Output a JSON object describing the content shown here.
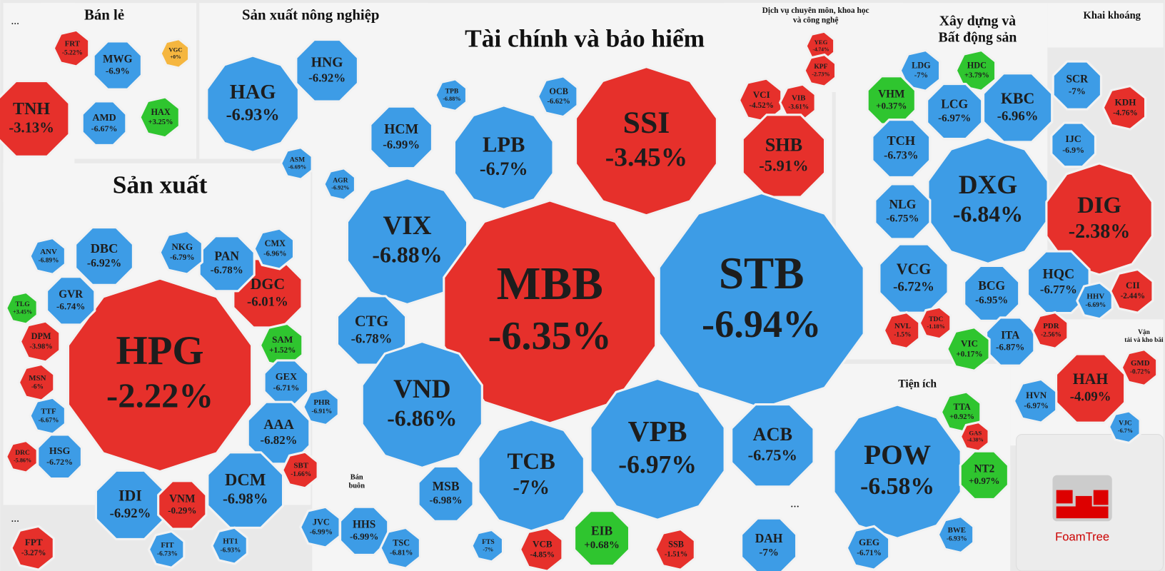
{
  "groups": [
    {
      "title": [
        "…"
      ],
      "cells": [
        {
          "ticker": "TNH",
          "change": "-3.13%"
        }
      ]
    },
    {
      "title": [
        "Bán lẻ"
      ],
      "cells": [
        {
          "ticker": "FRT",
          "change": "-5.22%"
        },
        {
          "ticker": "MWG",
          "change": "-6.9%"
        },
        {
          "ticker": "VGC",
          "change": "+0%"
        },
        {
          "ticker": "AMD",
          "change": "-6.67%"
        },
        {
          "ticker": "HAX",
          "change": "+3.25%"
        }
      ]
    },
    {
      "title": [
        "Sản xuất nông nghiệp"
      ],
      "cells": [
        {
          "ticker": "HAG",
          "change": "-6.93%"
        },
        {
          "ticker": "HNG",
          "change": "-6.92%"
        },
        {
          "ticker": "ASM",
          "change": "-6.69%"
        }
      ]
    },
    {
      "title": [
        "Tài chính và bảo hiểm"
      ],
      "cells": [
        {
          "ticker": "HCM",
          "change": "-6.99%"
        },
        {
          "ticker": "LPB",
          "change": "-6.7%"
        },
        {
          "ticker": "SSI",
          "change": "-3.45%"
        },
        {
          "ticker": "VCI",
          "change": "-4.52%"
        },
        {
          "ticker": "VIB",
          "change": "-3.61%"
        },
        {
          "ticker": "SHB",
          "change": "-5.91%"
        },
        {
          "ticker": "TPB",
          "change": "-6.88%"
        },
        {
          "ticker": "OCB",
          "change": "-6.62%"
        },
        {
          "ticker": "AGR",
          "change": "-6.92%"
        },
        {
          "ticker": "VIX",
          "change": "-6.88%"
        },
        {
          "ticker": "MBB",
          "change": "-6.35%"
        },
        {
          "ticker": "STB",
          "change": "-6.94%"
        },
        {
          "ticker": "CTG",
          "change": "-6.78%"
        },
        {
          "ticker": "VND",
          "change": "-6.86%"
        },
        {
          "ticker": "TCB",
          "change": "-7%"
        },
        {
          "ticker": "VPB",
          "change": "-6.97%"
        },
        {
          "ticker": "ACB",
          "change": "-6.75%"
        },
        {
          "ticker": "MSB",
          "change": "-6.98%"
        },
        {
          "ticker": "EIB",
          "change": "+0.68%"
        },
        {
          "ticker": "VCB",
          "change": "-4.85%"
        },
        {
          "ticker": "SSB",
          "change": "-1.51%"
        },
        {
          "ticker": "FTS",
          "change": "-7%"
        }
      ]
    },
    {
      "title": [
        "Sản xuất"
      ],
      "cells": [
        {
          "ticker": "DBC",
          "change": "-6.92%"
        },
        {
          "ticker": "HPG",
          "change": "-2.22%"
        },
        {
          "ticker": "GVR",
          "change": "-6.74%"
        },
        {
          "ticker": "DGC",
          "change": "-6.01%"
        },
        {
          "ticker": "SAM",
          "change": "+1.52%"
        },
        {
          "ticker": "GEX",
          "change": "-6.71%"
        },
        {
          "ticker": "AAA",
          "change": "-6.82%"
        },
        {
          "ticker": "DCM",
          "change": "-6.98%"
        },
        {
          "ticker": "IDI",
          "change": "-6.92%"
        },
        {
          "ticker": "VNM",
          "change": "-0.29%"
        },
        {
          "ticker": "PAN",
          "change": "-6.78%"
        },
        {
          "ticker": "NKG",
          "change": "-6.79%"
        },
        {
          "ticker": "CMX",
          "change": "-6.96%"
        },
        {
          "ticker": "DPM",
          "change": "-3.98%"
        },
        {
          "ticker": "MSN",
          "change": "-6%"
        },
        {
          "ticker": "TTF",
          "change": "-6.67%"
        },
        {
          "ticker": "HSG",
          "change": "-6.72%"
        },
        {
          "ticker": "DRC",
          "change": "-5.86%"
        },
        {
          "ticker": "SBT",
          "change": "-1.66%"
        },
        {
          "ticker": "PHR",
          "change": "-6.91%"
        },
        {
          "ticker": "ANV",
          "change": "-6.89%"
        },
        {
          "ticker": "TLG",
          "change": "+3.45%"
        },
        {
          "ticker": "HT1",
          "change": "-6.93%"
        },
        {
          "ticker": "FIT",
          "change": "-6.73%"
        }
      ]
    },
    {
      "title": [
        "…"
      ],
      "cells": [
        {
          "ticker": "FPT",
          "change": "-3.27%"
        }
      ]
    },
    {
      "title": [
        "Bán",
        "buôn"
      ],
      "cells": [
        {
          "ticker": "JVC",
          "change": "-6.99%"
        },
        {
          "ticker": "HHS",
          "change": "-6.99%"
        },
        {
          "ticker": "TSC",
          "change": "-6.81%"
        }
      ]
    },
    {
      "title": [
        "Dịch vụ chuyên môn, khoa học",
        "và công nghệ"
      ],
      "cells": [
        {
          "ticker": "YEG",
          "change": "-4.74%"
        },
        {
          "ticker": "KPF",
          "change": "-2.73%"
        }
      ]
    },
    {
      "title": [
        "Xây dựng và",
        "Bất động sản"
      ],
      "cells": [
        {
          "ticker": "LDG",
          "change": "-7%"
        },
        {
          "ticker": "HDC",
          "change": "+3.79%"
        },
        {
          "ticker": "VHM",
          "change": "+0.37%"
        },
        {
          "ticker": "LCG",
          "change": "-6.97%"
        },
        {
          "ticker": "KBC",
          "change": "-6.96%"
        },
        {
          "ticker": "SCR",
          "change": "-7%"
        },
        {
          "ticker": "KDH",
          "change": "-4.76%"
        },
        {
          "ticker": "TCH",
          "change": "-6.73%"
        },
        {
          "ticker": "IJC",
          "change": "-6.9%"
        },
        {
          "ticker": "DXG",
          "change": "-6.84%"
        },
        {
          "ticker": "DIG",
          "change": "-2.38%"
        },
        {
          "ticker": "NLG",
          "change": "-6.75%"
        },
        {
          "ticker": "VCG",
          "change": "-6.72%"
        },
        {
          "ticker": "BCG",
          "change": "-6.95%"
        },
        {
          "ticker": "HQC",
          "change": "-6.77%"
        },
        {
          "ticker": "HHV",
          "change": "-6.69%"
        },
        {
          "ticker": "CII",
          "change": "-2.44%"
        },
        {
          "ticker": "ITA",
          "change": "-6.87%"
        },
        {
          "ticker": "NVL",
          "change": "-1.5%"
        },
        {
          "ticker": "VIC",
          "change": "+0.17%"
        },
        {
          "ticker": "PDR",
          "change": "-2.56%"
        },
        {
          "ticker": "TDC",
          "change": "-1.18%"
        }
      ]
    },
    {
      "title": [
        "Khai khoáng"
      ],
      "cells": []
    },
    {
      "title": [
        "Vận",
        "tải và kho bãi"
      ],
      "cells": [
        {
          "ticker": "HAH",
          "change": "-4.09%"
        },
        {
          "ticker": "HVN",
          "change": "-6.97%"
        },
        {
          "ticker": "GMD",
          "change": "-0.72%"
        },
        {
          "ticker": "VJC",
          "change": "-6.7%"
        }
      ]
    },
    {
      "title": [
        "Tiện ích"
      ],
      "cells": [
        {
          "ticker": "POW",
          "change": "-6.58%"
        },
        {
          "ticker": "TTA",
          "change": "+0.92%"
        },
        {
          "ticker": "NT2",
          "change": "+0.97%"
        },
        {
          "ticker": "GEG",
          "change": "-6.71%"
        },
        {
          "ticker": "BWE",
          "change": "-6.93%"
        },
        {
          "ticker": "GAS",
          "change": "-4.38%"
        }
      ]
    },
    {
      "title": [
        "…"
      ],
      "cells": [
        {
          "ticker": "DAH",
          "change": "-7%"
        }
      ]
    }
  ],
  "logo": "FoamTree"
}
